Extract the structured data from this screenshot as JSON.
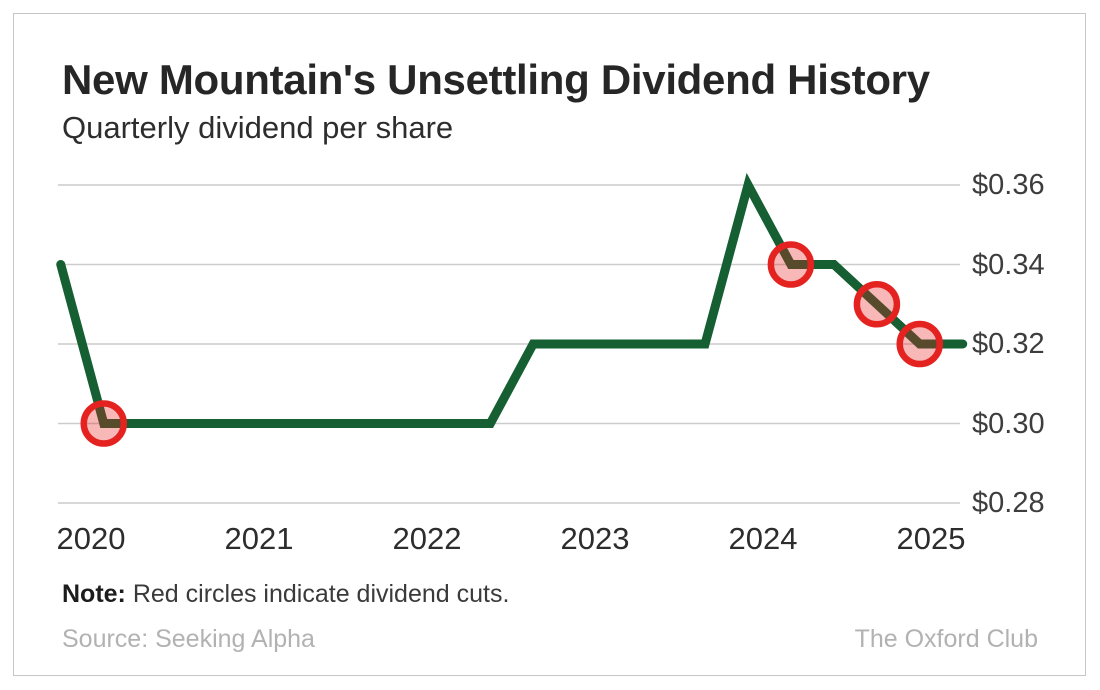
{
  "header": {
    "title": "New Mountain's Unsettling Dividend History",
    "subtitle": "Quarterly dividend per share"
  },
  "footer": {
    "note_label": "Note:",
    "note_text": " Red circles indicate dividend cuts.",
    "source": "Source: Seeking Alpha",
    "brand": "The Oxford Club"
  },
  "colors": {
    "line": "#165f33",
    "cut_ring": "#e42320",
    "cut_fill": "rgba(230,33,30,0.32)",
    "gridline": "#cccccc",
    "axis_label": "#3d3d3d"
  },
  "chart_data": {
    "type": "line",
    "title": "New Mountain's Unsettling Dividend History",
    "subtitle": "Quarterly dividend per share",
    "ylabel": "Quarterly dividend per share ($)",
    "xlabel": "",
    "grid": "horizontal-only",
    "legend": "none",
    "ylim": [
      0.28,
      0.36
    ],
    "xlim": [
      2019.8,
      2025.2
    ],
    "y_ticks": [
      0.28,
      0.3,
      0.32,
      0.34,
      0.36
    ],
    "y_tick_labels": [
      "$0.28",
      "$0.30",
      "$0.32",
      "$0.34",
      "$0.36"
    ],
    "x_ticks": [
      2020,
      2021,
      2022,
      2023,
      2024,
      2025
    ],
    "x_tick_labels": [
      "2020",
      "2021",
      "2022",
      "2023",
      "2024",
      "2025"
    ],
    "quarters": [
      "Q4 2019",
      "Q1 2020",
      "Q2 2020",
      "Q3 2020",
      "Q4 2020",
      "Q1 2021",
      "Q2 2021",
      "Q3 2021",
      "Q4 2021",
      "Q1 2022",
      "Q2 2022",
      "Q3 2022",
      "Q4 2022",
      "Q1 2023",
      "Q2 2023",
      "Q3 2023",
      "Q4 2023",
      "Q1 2024",
      "Q2 2024",
      "Q3 2024",
      "Q4 2024",
      "Q1 2025"
    ],
    "x": [
      2019.82,
      2020.076,
      2020.331,
      2020.587,
      2020.843,
      2021.098,
      2021.354,
      2021.61,
      2021.865,
      2022.121,
      2022.377,
      2022.632,
      2022.888,
      2023.144,
      2023.399,
      2023.655,
      2023.911,
      2024.166,
      2024.422,
      2024.678,
      2024.933,
      2025.189
    ],
    "values": [
      0.34,
      0.3,
      0.3,
      0.3,
      0.3,
      0.3,
      0.3,
      0.3,
      0.3,
      0.3,
      0.3,
      0.32,
      0.32,
      0.32,
      0.32,
      0.32,
      0.36,
      0.34,
      0.34,
      0.33,
      0.32,
      0.32
    ],
    "cut_indices": [
      1,
      17,
      19,
      20
    ],
    "dividend_cuts": [
      {
        "quarter": "Q1 2020",
        "from": 0.34,
        "to": 0.3
      },
      {
        "quarter": "Q1 2024",
        "from": 0.36,
        "to": 0.34
      },
      {
        "quarter": "Q3 2024",
        "from": 0.34,
        "to": 0.33
      },
      {
        "quarter": "Q4 2024",
        "from": 0.33,
        "to": 0.32
      }
    ]
  }
}
